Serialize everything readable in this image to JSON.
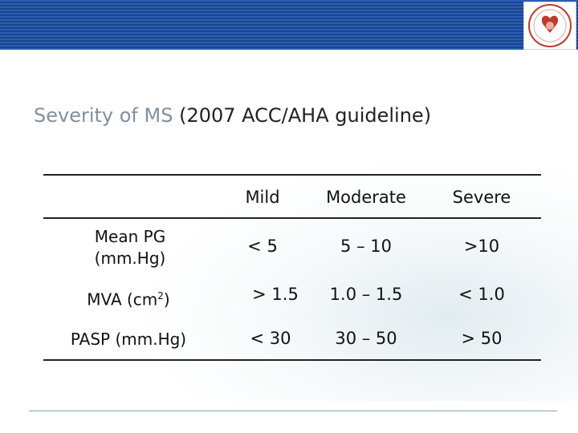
{
  "title": {
    "main": "Severity of MS",
    "sub": "(2007 ACC/AHA guideline)"
  },
  "table": {
    "columns": [
      "Mild",
      "Moderate",
      "Severe"
    ],
    "rows": [
      {
        "label_line1": "Mean PG",
        "label_line2": "(mm.Hg)",
        "values": [
          "< 5",
          "5 – 10",
          ">10"
        ]
      },
      {
        "label_pre": "MVA  (cm",
        "label_sup": "2",
        "label_post": ")",
        "values": [
          "> 1.5",
          "1.0 – 1.5",
          "< 1.0"
        ]
      },
      {
        "label": "PASP  (mm.Hg)",
        "values": [
          "< 30",
          "30 – 50",
          "> 50"
        ]
      }
    ]
  },
  "colors": {
    "header_band": "#1f4fa0",
    "title_main": "#7f8fa0",
    "rules": "#222222"
  }
}
